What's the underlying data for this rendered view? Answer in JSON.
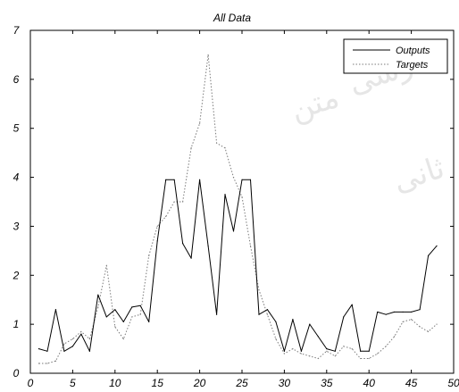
{
  "chart_data": {
    "type": "line",
    "title": "All Data",
    "xlabel": "",
    "ylabel": "",
    "xlim": [
      0,
      50
    ],
    "ylim": [
      0,
      7
    ],
    "xticks": [
      0,
      5,
      10,
      15,
      20,
      25,
      30,
      35,
      40,
      45,
      50
    ],
    "yticks": [
      0,
      1,
      2,
      3,
      4,
      5,
      6,
      7
    ],
    "grid": false,
    "legend_position": "top-right",
    "series": [
      {
        "name": "Outputs",
        "style": "solid",
        "color": "#000000",
        "x": [
          1,
          2,
          3,
          4,
          5,
          6,
          7,
          8,
          9,
          10,
          11,
          12,
          13,
          14,
          15,
          16,
          17,
          18,
          19,
          20,
          21,
          22,
          23,
          24,
          25,
          26,
          27,
          28,
          29,
          30,
          31,
          32,
          33,
          34,
          35,
          36,
          37,
          38,
          39,
          40,
          41,
          42,
          43,
          44,
          45,
          46,
          47,
          48
        ],
        "y": [
          0.5,
          0.45,
          1.3,
          0.45,
          0.55,
          0.8,
          0.45,
          1.6,
          1.15,
          1.3,
          1.05,
          1.35,
          1.38,
          1.05,
          2.7,
          3.95,
          3.95,
          2.65,
          2.35,
          3.95,
          2.6,
          1.2,
          3.65,
          2.9,
          3.95,
          3.95,
          1.2,
          1.3,
          1.05,
          0.45,
          1.1,
          0.45,
          1.0,
          0.75,
          0.5,
          0.45,
          1.15,
          1.4,
          0.45,
          0.45,
          1.25,
          1.2,
          1.25,
          1.25,
          1.25,
          1.3,
          2.4,
          2.6
        ]
      },
      {
        "name": "Targets",
        "style": "dotted",
        "color": "#7a7a7a",
        "x": [
          1,
          2,
          3,
          4,
          5,
          6,
          7,
          8,
          9,
          10,
          11,
          12,
          13,
          14,
          15,
          16,
          17,
          18,
          19,
          20,
          21,
          22,
          23,
          24,
          25,
          26,
          27,
          28,
          29,
          30,
          31,
          32,
          33,
          34,
          35,
          36,
          37,
          38,
          39,
          40,
          41,
          42,
          43,
          44,
          45,
          46,
          47,
          48
        ],
        "y": [
          0.2,
          0.2,
          0.25,
          0.6,
          0.7,
          0.85,
          0.7,
          1.35,
          2.2,
          0.95,
          0.7,
          1.15,
          1.2,
          2.4,
          3.0,
          3.2,
          3.5,
          3.5,
          4.6,
          5.1,
          6.5,
          4.7,
          4.6,
          4.0,
          3.6,
          2.6,
          1.7,
          1.2,
          0.7,
          0.4,
          0.5,
          0.4,
          0.35,
          0.3,
          0.45,
          0.35,
          0.55,
          0.5,
          0.3,
          0.3,
          0.4,
          0.55,
          0.75,
          1.05,
          1.1,
          0.95,
          0.85,
          1.0
        ]
      }
    ]
  }
}
